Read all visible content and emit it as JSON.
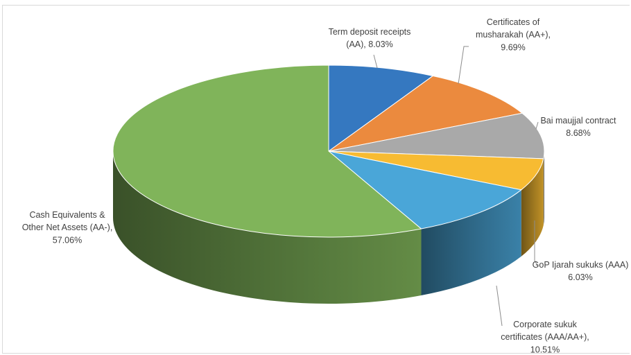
{
  "chart_data": {
    "type": "pie",
    "variant": "3d-exploded-none",
    "slices": [
      {
        "label": "Term deposit receipts (AA)",
        "value": 8.03,
        "color": "#3578c0",
        "lines": [
          "Term deposit receipts",
          "(AA), 8.03%"
        ]
      },
      {
        "label": "Certificates of musharakah (AA+)",
        "value": 9.69,
        "color": "#eb8a3e",
        "lines": [
          "Certificates of",
          "musharakah (AA+),",
          "9.69%"
        ]
      },
      {
        "label": "Bai maujjal contract",
        "value": 8.68,
        "color": "#a9a9a9",
        "lines": [
          "Bai maujjal contract",
          "8.68%"
        ]
      },
      {
        "label": "GoP Ijarah sukuks (AAA)",
        "value": 6.03,
        "color": "#f7bb32",
        "lines": [
          "GoP Ijarah sukuks (AAA)",
          "6.03%"
        ]
      },
      {
        "label": "Corporate sukuk certificates (AAA/AA+)",
        "value": 10.51,
        "color": "#4aa6d8",
        "lines": [
          "Corporate sukuk",
          "certificates (AAA/AA+),",
          "10.51%"
        ]
      },
      {
        "label": "Cash Equivalents & Other Net Assets (AA-)",
        "value": 57.06,
        "color": "#80b45a",
        "lines": [
          "Cash Equivalents &",
          "Other Net Assets (AA-),",
          "57.06%"
        ]
      }
    ]
  }
}
